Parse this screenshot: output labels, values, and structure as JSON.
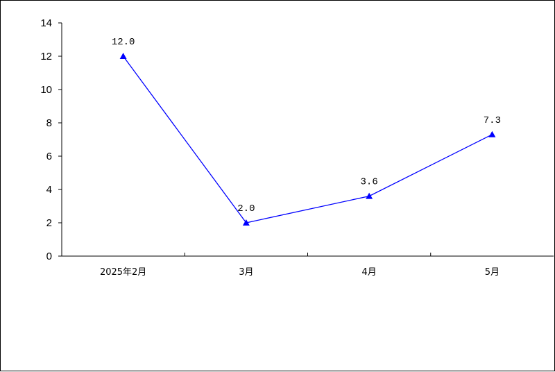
{
  "chart_data": {
    "type": "line",
    "categories": [
      "2025年2月",
      "3月",
      "4月",
      "5月"
    ],
    "series": [
      {
        "values": [
          12.0,
          2.0,
          3.6,
          7.3
        ],
        "labels": [
          "12.0",
          "2.0",
          "3.6",
          "7.3"
        ]
      }
    ],
    "ylim": [
      0,
      14
    ],
    "yticks": [
      "0",
      "2",
      "4",
      "6",
      "8",
      "10",
      "12",
      "14"
    ],
    "grid": false,
    "marker": "triangle",
    "line_color": "#0000FF",
    "marker_color": "#0000FF",
    "axis_color": "#000000"
  }
}
